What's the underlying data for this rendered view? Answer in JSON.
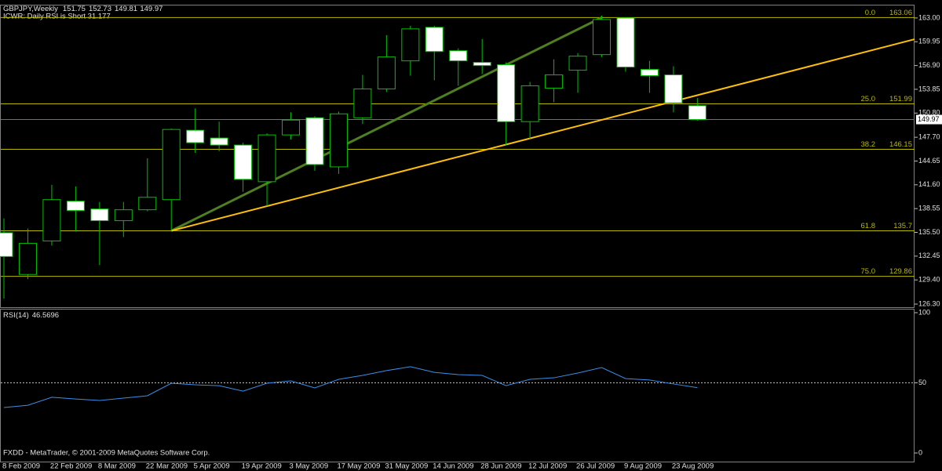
{
  "chart_data": [
    {
      "type": "candlestick",
      "title": "GBPJPY,Weekly",
      "subtitle": "ICWR: Daily RSI is Short 31.177",
      "footer": "FXDD - MetaTrader, © 2001-2009 MetaQuotes Software Corp.",
      "categories": [
        "8 Feb 2009",
        null,
        "22 Feb 2009",
        null,
        "8 Mar 2009",
        null,
        "22 Mar 2009",
        null,
        "5 Apr 2009",
        null,
        "19 Apr 2009",
        null,
        "3 May 2009",
        null,
        "17 May 2009",
        null,
        "31 May 2009",
        null,
        "14 Jun 2009",
        null,
        "28 Jun 2009",
        null,
        "12 Jul 2009",
        null,
        "26 Jul 2009",
        null,
        "9 Aug 2009",
        null,
        "23 Aug 2009",
        null
      ],
      "open": [
        135.45,
        130.1,
        134.4,
        139.5,
        138.5,
        137.0,
        138.4,
        139.7,
        148.6,
        147.6,
        146.7,
        142.0,
        148.0,
        150.2,
        143.9,
        150.2,
        153.9,
        157.5,
        161.8,
        158.8,
        157.3,
        157.0,
        149.7,
        154.0,
        156.3,
        158.3,
        163.0,
        156.4,
        155.7,
        151.75
      ],
      "high": [
        137.3,
        136.0,
        141.6,
        141.4,
        139.4,
        139.4,
        145.0,
        148.8,
        151.4,
        149.7,
        147.0,
        148.2,
        150.9,
        150.4,
        151.0,
        155.7,
        160.8,
        162.0,
        162.0,
        159.1,
        160.3,
        157.3,
        154.8,
        157.7,
        158.5,
        163.3,
        163.1,
        157.5,
        156.8,
        152.73
      ],
      "low": [
        127.0,
        129.5,
        133.8,
        135.6,
        131.3,
        134.9,
        138.2,
        135.7,
        145.7,
        145.9,
        140.7,
        138.9,
        147.4,
        143.4,
        143.0,
        149.4,
        153.5,
        155.6,
        155.0,
        154.3,
        155.8,
        146.7,
        147.4,
        152.2,
        153.4,
        158.0,
        156.1,
        153.4,
        150.9,
        149.81
      ],
      "close": [
        132.4,
        134.1,
        139.7,
        138.3,
        137.0,
        138.4,
        140.0,
        148.7,
        147.0,
        146.7,
        142.3,
        148.0,
        149.9,
        144.2,
        150.7,
        153.9,
        158.0,
        161.6,
        158.7,
        157.5,
        156.9,
        149.7,
        154.3,
        155.7,
        158.1,
        162.8,
        156.7,
        155.6,
        152.1,
        149.97
      ],
      "up_color": "#000000",
      "down_color": "#ffffff",
      "wick_color": "#00c000",
      "ylim": [
        125.9,
        164.5
      ],
      "yticks": [
        {
          "value": 163.0,
          "label": "163.00"
        },
        {
          "value": 159.95,
          "label": "159.95"
        },
        {
          "value": 156.9,
          "label": "156.90"
        },
        {
          "value": 153.85,
          "label": "153.85"
        },
        {
          "value": 150.8,
          "label": "150.80"
        },
        {
          "value": 147.7,
          "label": "147.70"
        },
        {
          "value": 144.65,
          "label": "144.65"
        },
        {
          "value": 141.6,
          "label": "141.60"
        },
        {
          "value": 138.55,
          "label": "138.55"
        },
        {
          "value": 135.5,
          "label": "135.50"
        },
        {
          "value": 132.45,
          "label": "132.45"
        },
        {
          "value": 129.4,
          "label": "129.40"
        },
        {
          "value": 126.3,
          "label": "126.30"
        }
      ],
      "fib_color": "#b8b800",
      "fib_levels": [
        {
          "label": "0.0",
          "value": 163.06
        },
        {
          "label": "25.0",
          "value": 151.99
        },
        {
          "label": "38.2",
          "value": 146.15
        },
        {
          "label": "61.8",
          "value": 135.7
        },
        {
          "label": "75.0",
          "value": 129.86
        }
      ],
      "trendlines": [
        {
          "color": "#4f7f1f",
          "from": {
            "index": 7,
            "price": 135.7
          },
          "to": {
            "index": 25,
            "price": 163.06
          },
          "extend": false
        },
        {
          "color": "#ffc000",
          "from": {
            "index": 7,
            "price": 135.7
          },
          "to": {
            "index": 28,
            "price": 152.3
          },
          "extend": true
        }
      ]
    },
    {
      "type": "line",
      "label": "RSI(14)",
      "series": [
        {
          "name": "RSI(14)",
          "color": "#3a8fe8",
          "values": [
            32.4,
            34.0,
            39.7,
            38.5,
            37.4,
            39.1,
            40.8,
            49.7,
            48.6,
            48.0,
            44.1,
            49.7,
            51.4,
            46.4,
            52.5,
            55.3,
            58.7,
            61.5,
            57.5,
            55.9,
            55.3,
            48.0,
            52.5,
            53.6,
            57.0,
            60.9,
            53.0,
            52.0,
            49.2,
            46.5696
          ]
        }
      ],
      "ylim": [
        0,
        100
      ],
      "yticks": [
        0,
        50,
        100
      ],
      "level": 50
    }
  ]
}
